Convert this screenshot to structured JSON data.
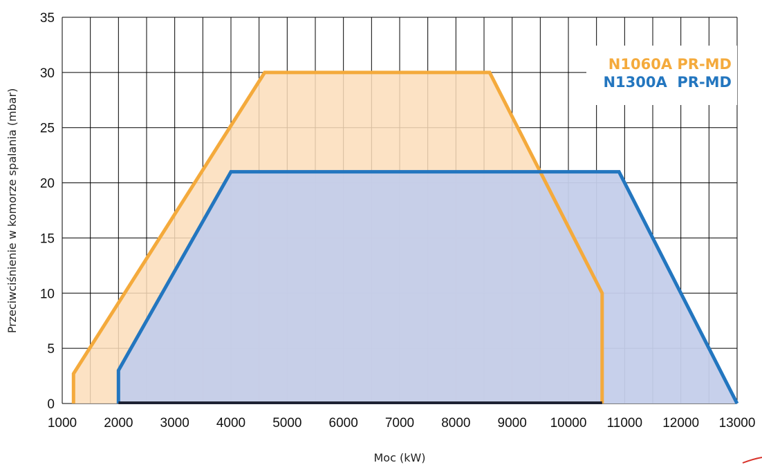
{
  "chart_data": {
    "type": "area",
    "xlabel": "Moc (kW)",
    "ylabel": "Przeciwciśnienie w komorze spalania (mbar)",
    "xlim": [
      1000,
      13000
    ],
    "ylim": [
      0,
      35
    ],
    "x_ticks": [
      1000,
      2000,
      3000,
      4000,
      5000,
      6000,
      7000,
      8000,
      9000,
      10000,
      11000,
      12000,
      13000
    ],
    "y_ticks": [
      0,
      5,
      10,
      15,
      20,
      25,
      30,
      35
    ],
    "x_minor_step": 500,
    "grid": true,
    "legend_position": "top-right",
    "series": [
      {
        "name": "N1060A PR-MD",
        "color": "#F4AA3C",
        "fill": "#FBDDBA",
        "points": [
          [
            1200,
            0
          ],
          [
            1200,
            2.7
          ],
          [
            4600,
            30
          ],
          [
            8600,
            30
          ],
          [
            10600,
            10
          ],
          [
            10600,
            0
          ],
          [
            1200,
            0
          ]
        ]
      },
      {
        "name": "N1300A  PR-MD",
        "color": "#2376BF",
        "fill": "#C4CDEA",
        "points": [
          [
            2000,
            0
          ],
          [
            2000,
            3
          ],
          [
            4000,
            21
          ],
          [
            10900,
            21
          ],
          [
            13000,
            0
          ],
          [
            2000,
            0
          ]
        ]
      }
    ]
  }
}
